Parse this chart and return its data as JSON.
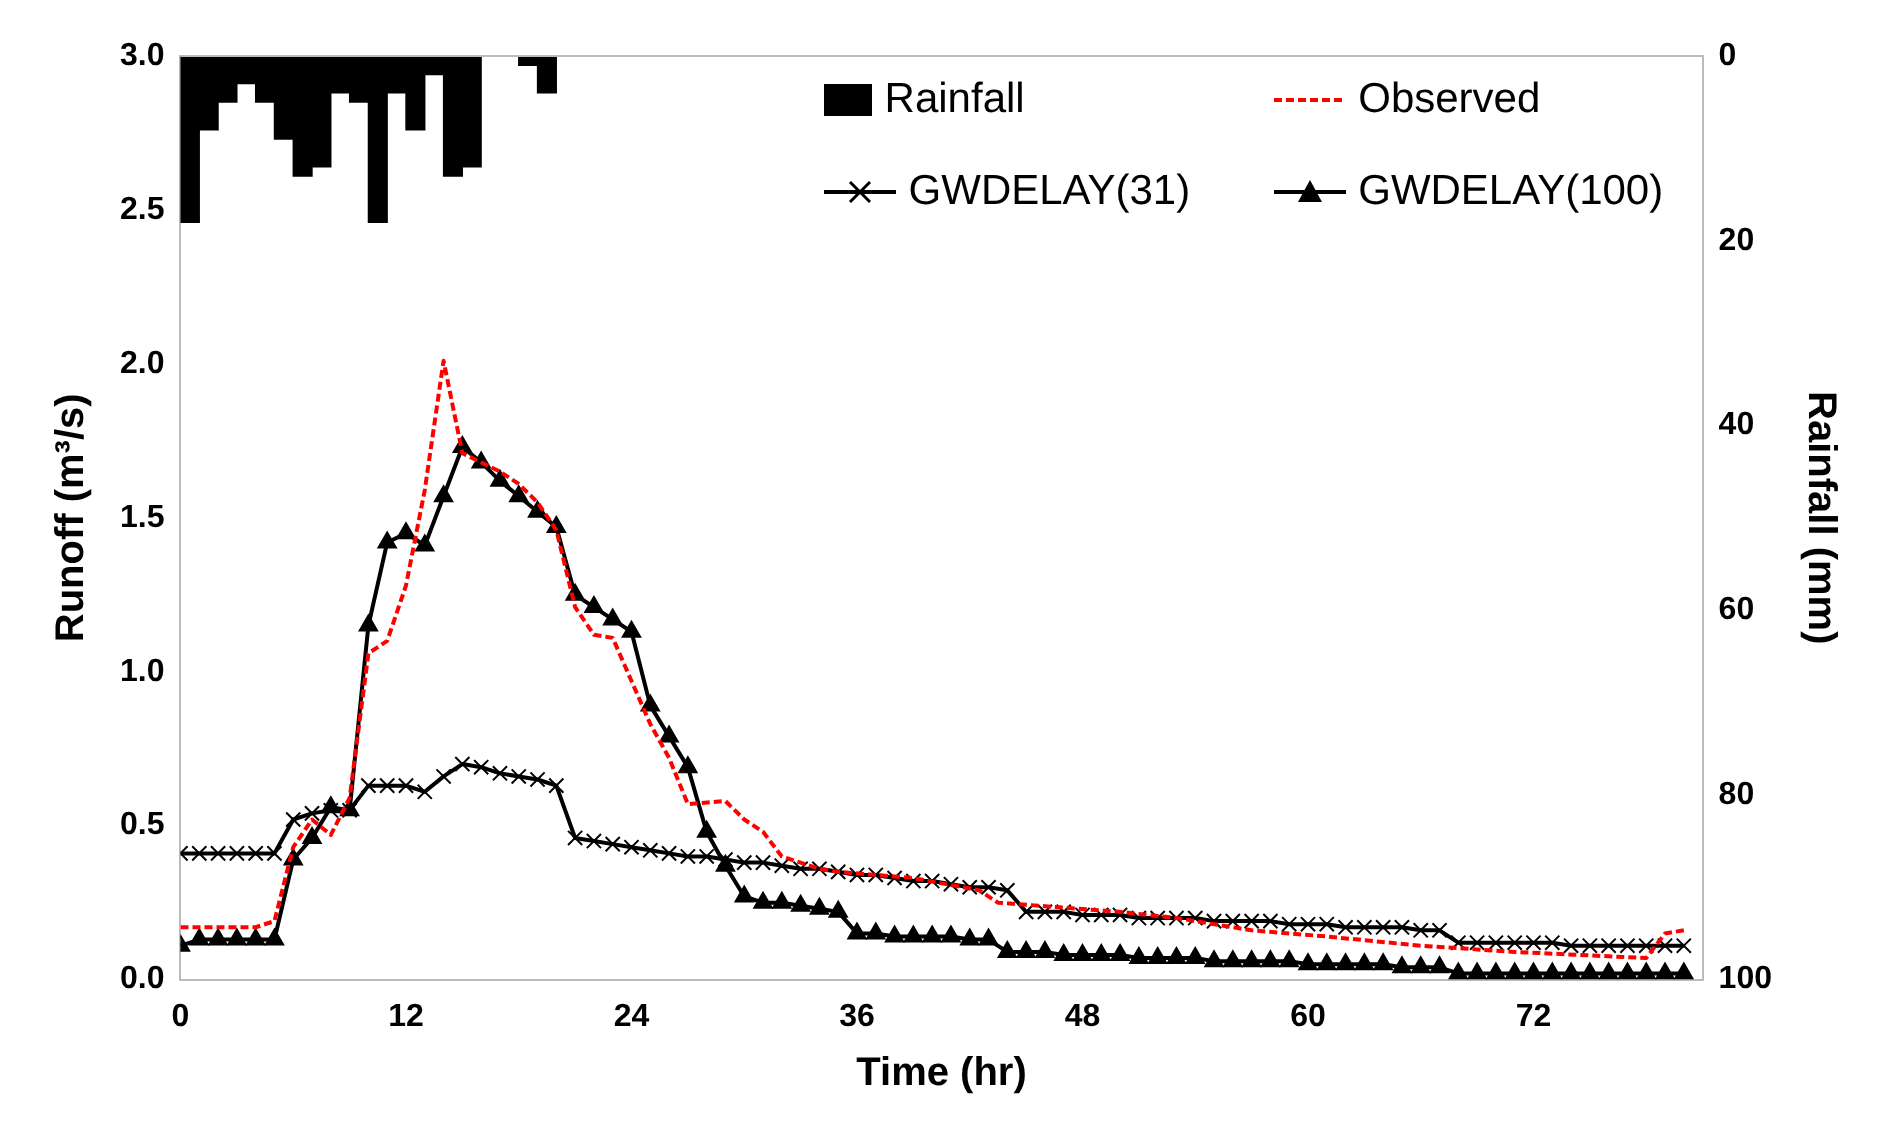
{
  "chart_data": {
    "type": "line",
    "xlabel": "Time (hr)",
    "ylabel": "Runoff (m³/s)",
    "y2label": "Rainfall (mm)",
    "x": [
      0,
      1,
      2,
      3,
      4,
      5,
      6,
      7,
      8,
      9,
      10,
      11,
      12,
      13,
      14,
      15,
      16,
      17,
      18,
      19,
      20,
      21,
      22,
      23,
      24,
      25,
      26,
      27,
      28,
      29,
      30,
      31,
      32,
      33,
      34,
      35,
      36,
      37,
      38,
      39,
      40,
      41,
      42,
      43,
      44,
      45,
      46,
      47,
      48,
      49,
      50,
      51,
      52,
      53,
      54,
      55,
      56,
      57,
      58,
      59,
      60,
      61,
      62,
      63,
      64,
      65,
      66,
      67,
      68,
      69,
      70,
      71,
      72,
      73,
      74,
      75,
      76,
      77,
      78,
      79,
      80
    ],
    "series": [
      {
        "name": "Rainfall",
        "type": "bar",
        "axis": "y2",
        "color": "#000000",
        "x": [
          0.5,
          1.5,
          2.5,
          3.5,
          4.5,
          5.5,
          6.5,
          7.5,
          8.5,
          9.5,
          10.5,
          11.5,
          12.5,
          13.5,
          14.5,
          15.5,
          16.5,
          17.5,
          18.5,
          19.5
        ],
        "values": [
          18,
          8,
          5,
          3,
          5,
          9,
          13,
          12,
          4,
          5,
          18,
          4,
          8,
          2,
          13,
          12,
          null,
          null,
          1,
          4
        ]
      },
      {
        "name": "Observed",
        "color": "#ff0000",
        "marker": "none",
        "line_style": "dashed",
        "x": [
          0,
          4,
          5,
          6,
          7,
          8,
          9,
          10,
          11,
          12,
          13,
          14,
          15,
          16,
          17,
          18,
          19,
          20,
          21,
          22,
          23,
          24,
          25,
          26,
          27,
          29,
          30,
          31,
          32,
          34,
          35,
          39,
          42.5,
          43.5,
          50,
          53,
          57,
          61,
          66,
          71,
          78,
          79,
          80
        ],
        "values": [
          0.17,
          0.17,
          0.19,
          0.43,
          0.52,
          0.47,
          0.59,
          1.06,
          1.1,
          1.28,
          1.59,
          2.01,
          1.71,
          1.68,
          1.65,
          1.61,
          1.55,
          1.46,
          1.21,
          1.12,
          1.11,
          0.97,
          0.83,
          0.72,
          0.57,
          0.58,
          0.52,
          0.48,
          0.4,
          0.36,
          0.35,
          0.33,
          0.29,
          0.25,
          0.22,
          0.2,
          0.16,
          0.14,
          0.11,
          0.09,
          0.07,
          0.15,
          0.16
        ]
      },
      {
        "name": "GWDELAY(31)",
        "color": "#000000",
        "marker": "cross",
        "line_style": "solid",
        "values": [
          0.41,
          0.41,
          0.41,
          0.41,
          0.41,
          0.41,
          0.52,
          0.54,
          0.55,
          0.55,
          0.63,
          0.63,
          0.63,
          0.61,
          0.66,
          0.7,
          0.69,
          0.67,
          0.66,
          0.65,
          0.63,
          0.46,
          0.45,
          0.44,
          0.43,
          0.42,
          0.41,
          0.4,
          0.4,
          0.39,
          0.38,
          0.38,
          0.37,
          0.36,
          0.36,
          0.35,
          0.34,
          0.34,
          0.33,
          0.32,
          0.32,
          0.31,
          0.3,
          0.3,
          0.29,
          0.22,
          0.22,
          0.22,
          0.21,
          0.21,
          0.21,
          0.2,
          0.2,
          0.2,
          0.2,
          0.19,
          0.19,
          0.19,
          0.19,
          0.18,
          0.18,
          0.18,
          0.17,
          0.17,
          0.17,
          0.17,
          0.16,
          0.16,
          0.12,
          0.12,
          0.12,
          0.12,
          0.12,
          0.12,
          0.11,
          0.11,
          0.11,
          0.11,
          0.11,
          0.11,
          0.11
        ]
      },
      {
        "name": "GWDELAY(100)",
        "color": "#000000",
        "marker": "triangle",
        "line_style": "solid",
        "values": [
          0.11,
          0.13,
          0.13,
          0.13,
          0.13,
          0.13,
          0.39,
          0.46,
          0.56,
          0.55,
          1.15,
          1.42,
          1.45,
          1.41,
          1.57,
          1.73,
          1.68,
          1.62,
          1.57,
          1.52,
          1.47,
          1.25,
          1.21,
          1.17,
          1.13,
          0.89,
          0.79,
          0.69,
          0.48,
          0.37,
          0.27,
          0.25,
          0.25,
          0.24,
          0.23,
          0.22,
          0.15,
          0.15,
          0.14,
          0.14,
          0.14,
          0.14,
          0.13,
          0.13,
          0.09,
          0.09,
          0.09,
          0.08,
          0.08,
          0.08,
          0.08,
          0.07,
          0.07,
          0.07,
          0.07,
          0.06,
          0.06,
          0.06,
          0.06,
          0.06,
          0.05,
          0.05,
          0.05,
          0.05,
          0.05,
          0.04,
          0.04,
          0.04,
          0.02,
          0.02,
          0.02,
          0.02,
          0.02,
          0.02,
          0.02,
          0.02,
          0.02,
          0.02,
          0.02,
          0.02,
          0.02
        ]
      }
    ],
    "xlim": [
      0,
      81
    ],
    "xticks": [
      0,
      12,
      24,
      36,
      48,
      60,
      72
    ],
    "ylim": [
      0,
      3
    ],
    "yticks": [
      {
        "value": 0,
        "label": "0.0"
      },
      {
        "value": 0.5,
        "label": "0.5"
      },
      {
        "value": 1,
        "label": "1.0"
      },
      {
        "value": 1.5,
        "label": "1.5"
      },
      {
        "value": 2,
        "label": "2.0"
      },
      {
        "value": 2.5,
        "label": "2.5"
      },
      {
        "value": 3,
        "label": "3.0"
      }
    ],
    "y2lim": [
      100,
      0
    ],
    "y2ticks": [
      0,
      20,
      40,
      60,
      80,
      100
    ],
    "grid": false,
    "legend": "top right"
  }
}
